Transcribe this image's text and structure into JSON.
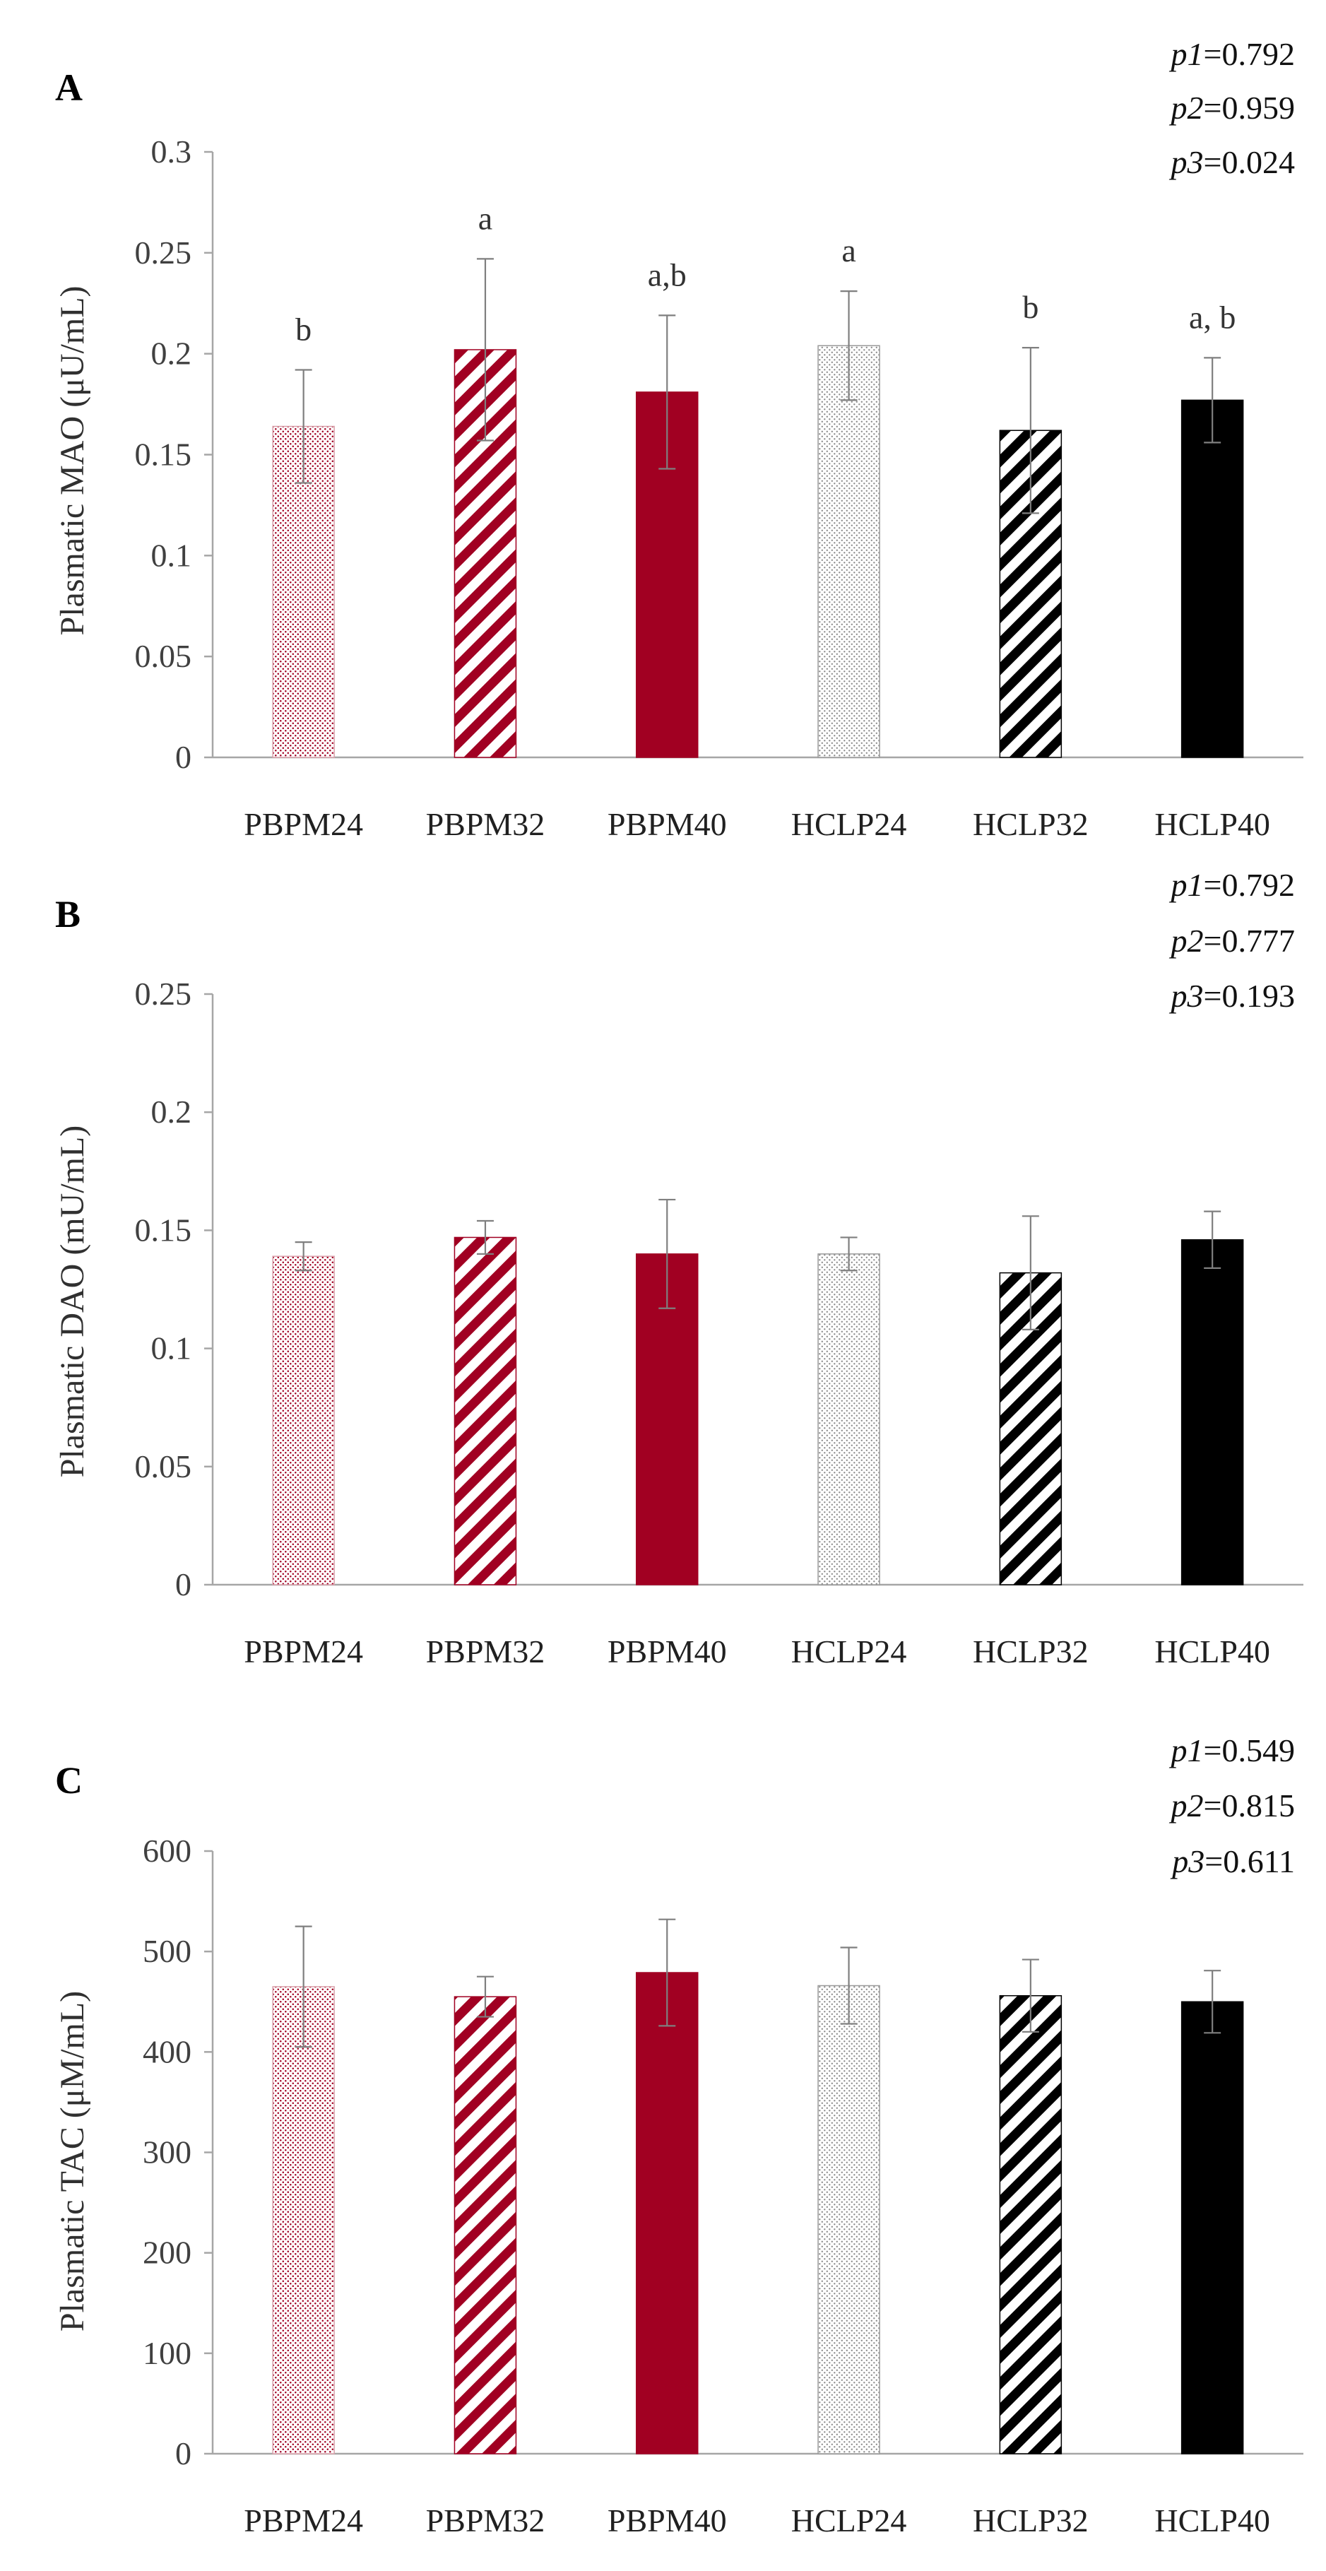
{
  "chart_data": [
    {
      "type": "bar",
      "panel": "A",
      "ylabel": "Plasmatic MAO (μU/mL)",
      "ylim": [
        0,
        0.3
      ],
      "yticks": [
        0,
        0.05,
        0.1,
        0.15,
        0.2,
        0.25,
        0.3
      ],
      "ytick_labels": [
        "0",
        "0.05",
        "0.1",
        "0.15",
        "0.2",
        "0.25",
        "0.3"
      ],
      "categories": [
        "PBPM24",
        "PBPM32",
        "PBPM40",
        "HCLP24",
        "HCLP32",
        "HCLP40"
      ],
      "values": [
        0.164,
        0.202,
        0.181,
        0.204,
        0.162,
        0.177
      ],
      "errors": [
        0.028,
        0.045,
        0.038,
        0.027,
        0.041,
        0.021
      ],
      "significance": [
        "b",
        "a",
        "a,b",
        "a",
        "b",
        "a, b"
      ],
      "pvalues": [
        {
          "label": "p1",
          "value": "=0.792"
        },
        {
          "label": "p2",
          "value": "=0.959"
        },
        {
          "label": "p3",
          "value": "=0.024"
        }
      ]
    },
    {
      "type": "bar",
      "panel": "B",
      "ylabel": "Plasmatic DAO (mU/mL)",
      "ylim": [
        0,
        0.25
      ],
      "yticks": [
        0,
        0.05,
        0.1,
        0.15,
        0.2,
        0.25
      ],
      "ytick_labels": [
        "0",
        "0.05",
        "0.1",
        "0.15",
        "0.2",
        "0.25"
      ],
      "categories": [
        "PBPM24",
        "PBPM32",
        "PBPM40",
        "HCLP24",
        "HCLP32",
        "HCLP40"
      ],
      "values": [
        0.139,
        0.147,
        0.14,
        0.14,
        0.132,
        0.146
      ],
      "errors": [
        0.006,
        0.007,
        0.023,
        0.007,
        0.024,
        0.012
      ],
      "significance": [
        "",
        "",
        "",
        "",
        "",
        ""
      ],
      "pvalues": [
        {
          "label": "p1",
          "value": "=0.792"
        },
        {
          "label": "p2",
          "value": "=0.777"
        },
        {
          "label": "p3",
          "value": "=0.193"
        }
      ]
    },
    {
      "type": "bar",
      "panel": "C",
      "ylabel": "Plasmatic TAC (μM/mL)",
      "ylim": [
        0,
        600
      ],
      "yticks": [
        0,
        100,
        200,
        300,
        400,
        500,
        600
      ],
      "ytick_labels": [
        "0",
        "100",
        "200",
        "300",
        "400",
        "500",
        "600"
      ],
      "categories": [
        "PBPM24",
        "PBPM32",
        "PBPM40",
        "HCLP24",
        "HCLP32",
        "HCLP40"
      ],
      "values": [
        465,
        455,
        479,
        466,
        456,
        450
      ],
      "errors": [
        60,
        20,
        53,
        38,
        36,
        31
      ],
      "significance": [
        "",
        "",
        "",
        "",
        "",
        ""
      ],
      "pvalues": [
        {
          "label": "p1",
          "value": "=0.549"
        },
        {
          "label": "p2",
          "value": "=0.815"
        },
        {
          "label": "p3",
          "value": "=0.611"
        }
      ]
    }
  ],
  "colors": {
    "crimson": "#a10022",
    "crimson_light": "#d9a0aa",
    "black": "#000000",
    "gray_dot": "#8c8c8c",
    "axis": "#a6a6a6",
    "errorbar": "#7f7f7f"
  },
  "bar_styles": [
    "crimson-dots",
    "crimson-stripes",
    "crimson-solid",
    "gray-dots",
    "black-stripes",
    "black-solid"
  ]
}
